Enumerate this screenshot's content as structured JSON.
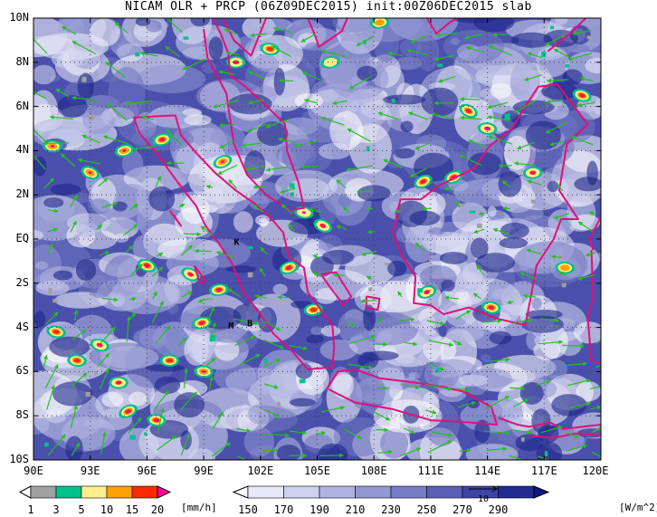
{
  "title": "NICAM OLR + PRCP (06Z09DEC2015) init:00Z06DEC2015 slab",
  "map": {
    "lat_labels": [
      "10N",
      "8N",
      "6N",
      "4N",
      "2N",
      "EQ",
      "2S",
      "4S",
      "6S",
      "8S",
      "10S"
    ],
    "lon_labels": [
      "90E",
      "93E",
      "96E",
      "99E",
      "102E",
      "105E",
      "108E",
      "111E",
      "114E",
      "117E",
      "120E"
    ],
    "extent": {
      "lon": [
        90,
        120
      ],
      "lat": [
        -10,
        10
      ]
    },
    "gridlines": "dotted",
    "colors": {
      "coastline": "#e0107a",
      "wind_arrow": "#22c020",
      "background_olr_low": "#1a1a80"
    },
    "markers": [
      {
        "label": "K",
        "lon": 100.6,
        "lat": -0.1
      },
      {
        "label": "M",
        "lon": 100.3,
        "lat": -3.9
      },
      {
        "label": "B",
        "lon": 101.3,
        "lat": -3.8
      }
    ]
  },
  "precip_colorbar": {
    "ticks": [
      "1",
      "3",
      "5",
      "10",
      "15",
      "20"
    ],
    "unit": "[mm/h]",
    "colors": [
      "#ffffff",
      "#a0a0a0",
      "#00c08c",
      "#fff08c",
      "#ffa000",
      "#ff2800",
      "#ff00a0"
    ]
  },
  "olr_colorbar": {
    "ticks": [
      "150",
      "170",
      "190",
      "210",
      "230",
      "250",
      "270",
      "290"
    ],
    "unit": "[W/m^2]",
    "colors": [
      "#ffffff",
      "#e8e8f6",
      "#cdd0ee",
      "#b0b4e2",
      "#9298d4",
      "#767cc6",
      "#5a60b6",
      "#3c44a6",
      "#222a92",
      "#10187e"
    ]
  },
  "vector_reference": {
    "label": "10"
  }
}
